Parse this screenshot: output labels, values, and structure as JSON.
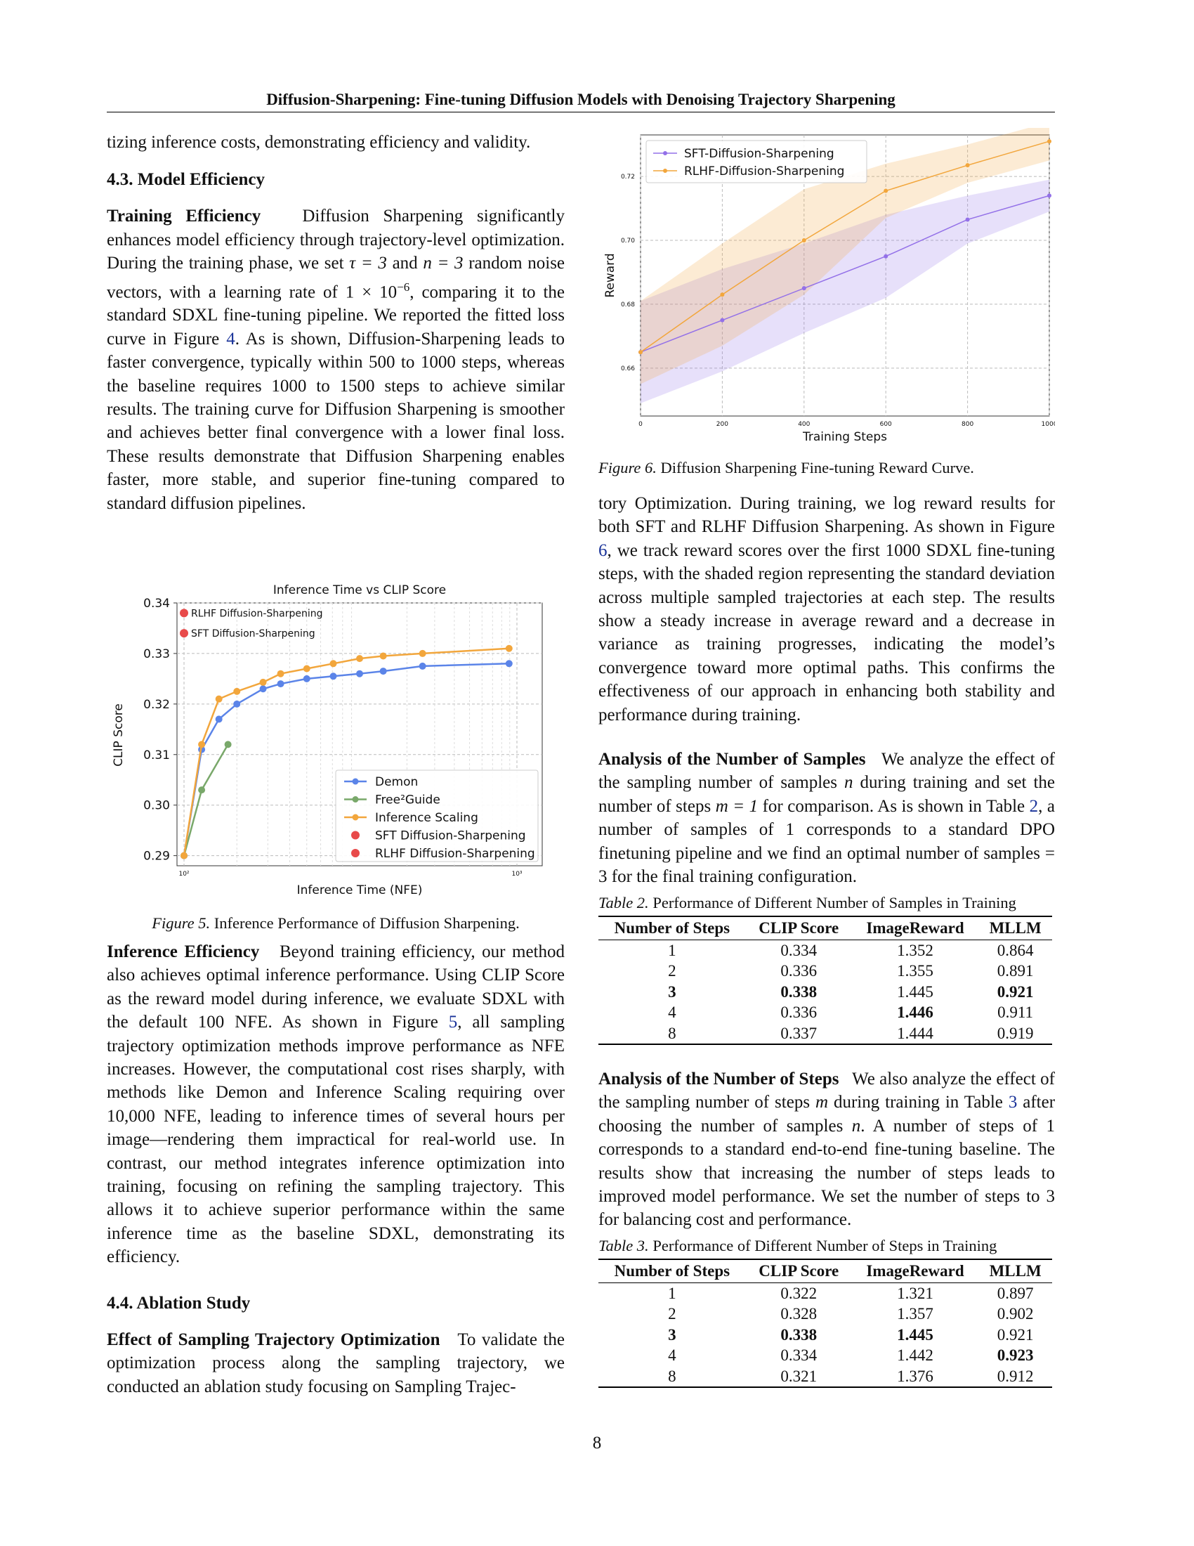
{
  "header": "Diffusion-Sharpening: Fine-tuning Diffusion Models with Denoising Trajectory Sharpening",
  "left": {
    "p0": "tizing inference costs, demonstrating efficiency and validity.",
    "h43": "4.3. Model Efficiency",
    "te_run": "Training Efficiency",
    "te_a": "Diffusion Sharpening significantly enhances model efficiency through trajectory-level optimization. During the training phase, we set",
    "te_tau": "τ = 3",
    "te_and": "and",
    "te_n": "n = 3",
    "te_b": "random noise vectors, with a learning rate of",
    "te_lr": "1 × 10",
    "te_lr_exp": "−6",
    "te_c": ", comparing it to the standard SDXL fine-tuning pipeline. We reported the fitted loss curve in Figure",
    "te_ref": "4",
    "te_d": ". As is shown, Diffusion-Sharpening leads to faster convergence, typically within 500 to 1000 steps, whereas the baseline requires 1000 to 1500 steps to achieve similar results. The training curve for Diffusion Sharpening is smoother and achieves better final convergence with a lower final loss. These results demonstrate that Diffusion Sharpening enables faster, more stable, and superior fine-tuning compared to standard diffusion pipelines.",
    "fig5_label": "Figure 5.",
    "fig5_text": "Inference Performance of Diffusion Sharpening.",
    "ie_run": "Inference Efficiency",
    "ie_a": "Beyond training efficiency, our method also achieves optimal inference performance. Using CLIP Score as the reward model during inference, we evaluate SDXL with the default 100 NFE. As shown in Figure",
    "ie_ref": "5",
    "ie_b": ", all sampling trajectory optimization methods improve performance as NFE increases. However, the computational cost rises sharply, with methods like Demon and Inference Scaling requiring over 10,000 NFE, leading to inference times of several hours per image—rendering them impractical for real-world use. In contrast, our method integrates inference optimization into training, focusing on refining the sampling trajectory. This allows it to achieve superior performance within the same inference time as the baseline SDXL, demonstrating its efficiency.",
    "h44": "4.4. Ablation Study",
    "es_run": "Effect of Sampling Trajectory Optimization",
    "es_a": "To validate the optimization process along the sampling trajectory, we conducted an ablation study focusing on Sampling Trajec-"
  },
  "right": {
    "fig6_label": "Figure 6.",
    "fig6_text": "Diffusion Sharpening Fine-tuning Reward Curve.",
    "p1": "tory Optimization. During training, we log reward results for both SFT and RLHF Diffusion Sharpening. As shown in Figure",
    "p1_ref": "6",
    "p1_b": ", we track reward scores over the first 1000 SDXL fine-tuning steps, with the shaded region representing the standard deviation across multiple sampled trajectories at each step. The results show a steady increase in average reward and a decrease in variance as training progresses, indicating the model’s convergence toward more optimal paths. This confirms the effectiveness of our approach in enhancing both stability and performance during training.",
    "ans_run": "Analysis of the Number of Samples",
    "ans_a": "We analyze the effect of the sampling number of samples",
    "ans_n": "n",
    "ans_b": "during training and set the number of steps",
    "ans_m": "m = 1",
    "ans_c": "for comparison. As is shown in Table",
    "ans_ref": "2",
    "ans_d": ", a number of samples of 1 corresponds to a standard DPO finetuning pipeline and we find an optimal number of samples = 3 for the final training configuration.",
    "t2_label": "Table 2.",
    "t2_text": "Performance of Different Number of Samples in Training",
    "anst_run": "Analysis of the Number of Steps",
    "anst_a": "We also analyze the effect of the sampling number of steps",
    "anst_m": "m",
    "anst_b": "during training in Table",
    "anst_ref": "3",
    "anst_c": "after choosing the number of samples",
    "anst_n": "n",
    "anst_d": ". A number of steps of 1 corresponds to a standard end-to-end fine-tuning baseline. The results show that increasing the number of steps leads to improved model performance. We set the number of steps to 3 for balancing cost and performance.",
    "t3_label": "Table 3.",
    "t3_text": "Performance of Different Number of Steps in Training"
  },
  "table2": {
    "headers": [
      "Number of Steps",
      "CLIP Score",
      "ImageReward",
      "MLLM"
    ],
    "rows": [
      [
        "1",
        "0.334",
        "1.352",
        "0.864"
      ],
      [
        "2",
        "0.336",
        "1.355",
        "0.891"
      ],
      [
        "3",
        "0.338",
        "1.445",
        "0.921"
      ],
      [
        "4",
        "0.336",
        "1.446",
        "0.911"
      ],
      [
        "8",
        "0.337",
        "1.444",
        "0.919"
      ]
    ]
  },
  "table3": {
    "headers": [
      "Number of Steps",
      "CLIP Score",
      "ImageReward",
      "MLLM"
    ],
    "rows": [
      [
        "1",
        "0.322",
        "1.321",
        "0.897"
      ],
      [
        "2",
        "0.328",
        "1.357",
        "0.902"
      ],
      [
        "3",
        "0.338",
        "1.445",
        "0.921"
      ],
      [
        "4",
        "0.334",
        "1.442",
        "0.923"
      ],
      [
        "8",
        "0.321",
        "1.376",
        "0.912"
      ]
    ]
  },
  "page_number": "8",
  "chart_data": [
    {
      "type": "line",
      "title": "Inference Time vs CLIP Score",
      "xlabel": "Inference Time (NFE)",
      "ylabel": "CLIP Score",
      "xscale": "log",
      "xlim": [
        100,
        10000
      ],
      "ylim": [
        0.288,
        0.34
      ],
      "xticks": [
        "10²",
        "10³"
      ],
      "yticks": [
        "0.29",
        "0.30",
        "0.31",
        "0.32",
        "0.33",
        "0.34"
      ],
      "grid": true,
      "legend": "bottom-right",
      "series": [
        {
          "name": "Demon",
          "color": "#5b84e8",
          "x": [
            100,
            126,
            158,
            200,
            282,
            355,
            500,
            708,
            1000,
            1413,
            2512,
            8913
          ],
          "y": [
            0.29,
            0.311,
            0.317,
            0.32,
            0.323,
            0.324,
            0.325,
            0.3255,
            0.326,
            0.3265,
            0.3275,
            0.328
          ]
        },
        {
          "name": "Free²Guide",
          "color": "#79a86a",
          "x": [
            100,
            126,
            178
          ],
          "y": [
            0.29,
            0.303,
            0.312
          ]
        },
        {
          "name": "Inference Scaling",
          "color": "#f2a63c",
          "x": [
            100,
            126,
            158,
            200,
            282,
            355,
            500,
            708,
            1000,
            1413,
            2512,
            8913
          ],
          "y": [
            0.29,
            0.312,
            0.321,
            0.3225,
            0.3243,
            0.326,
            0.327,
            0.328,
            0.329,
            0.3295,
            0.33,
            0.331
          ]
        },
        {
          "name": "SFT Diffusion-Sharpening",
          "color": "#e84a4a",
          "x": [
            100
          ],
          "y": [
            0.334
          ],
          "label": "SFT Diffusion-Sharpening"
        },
        {
          "name": "RLHF Diffusion-Sharpening",
          "color": "#e84a4a",
          "x": [
            100
          ],
          "y": [
            0.338
          ],
          "label": "RLHF Diffusion-Sharpening"
        }
      ]
    },
    {
      "type": "line",
      "xlabel": "Training Steps",
      "ylabel": "Reward",
      "xlim": [
        0,
        1000
      ],
      "ylim": [
        0.645,
        0.733
      ],
      "xticks": [
        "0",
        "200",
        "400",
        "600",
        "800",
        "1000"
      ],
      "yticks": [
        "0.66",
        "0.68",
        "0.70",
        "0.72"
      ],
      "grid": true,
      "legend": "top-left",
      "series": [
        {
          "name": "SFT-Diffusion-Sharpening",
          "color": "#9370e8",
          "x": [
            0,
            200,
            400,
            600,
            800,
            1000
          ],
          "y": [
            0.665,
            0.675,
            0.685,
            0.695,
            0.7065,
            0.714
          ],
          "std_lower": [
            0.649,
            0.659,
            0.671,
            0.682,
            0.699,
            0.709
          ],
          "std_upper": [
            0.681,
            0.691,
            0.699,
            0.708,
            0.714,
            0.719
          ]
        },
        {
          "name": "RLHF-Diffusion-Sharpening",
          "color": "#f2a63c",
          "x": [
            0,
            200,
            400,
            600,
            800,
            1000
          ],
          "y": [
            0.665,
            0.683,
            0.7,
            0.7155,
            0.7235,
            0.731
          ],
          "std_lower": [
            0.655,
            0.667,
            0.683,
            0.707,
            0.718,
            0.725
          ],
          "std_upper": [
            0.681,
            0.699,
            0.716,
            0.724,
            0.73,
            0.737
          ]
        }
      ]
    }
  ]
}
